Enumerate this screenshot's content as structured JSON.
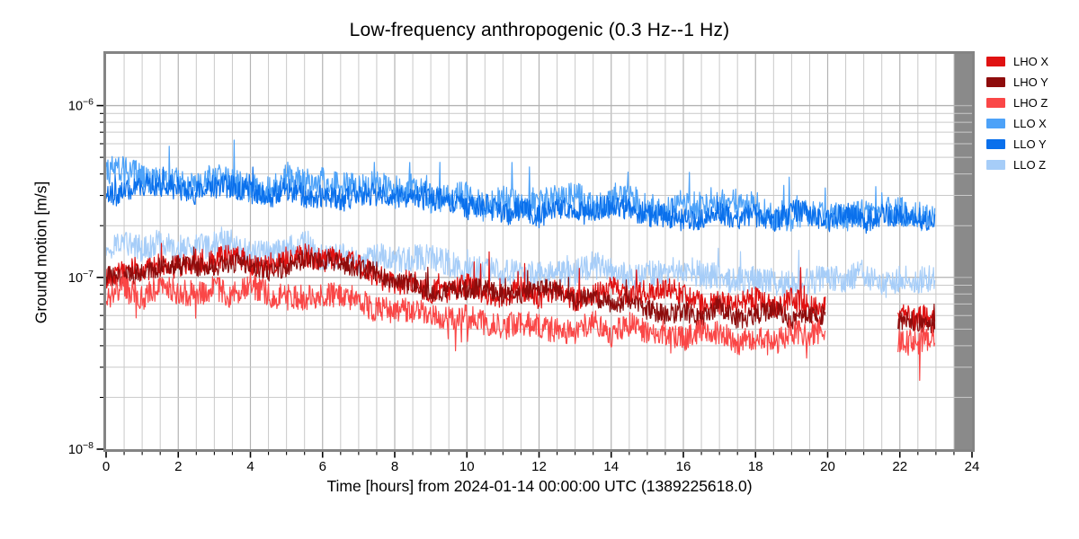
{
  "figure": {
    "bg": "#ffffff",
    "spine_color": "#848484",
    "grid_major_color": "#b3b3b3",
    "grid_minor_color": "#c9c9c9",
    "tick_color": "#000000",
    "future_shade_color": "#8a8a8a",
    "text_color": "#000000"
  },
  "chart_data": {
    "type": "line",
    "title": "Low-frequency anthropogenic (0.3 Hz--1 Hz)",
    "xlabel": "Time [hours] from 2024-01-14 00:00:00 UTC (1389225618.0)",
    "ylabel": "Ground motion [m/s]",
    "yscale": "log",
    "xlim": [
      0,
      24
    ],
    "ylim": [
      1e-08,
      2e-06
    ],
    "x_ticks": [
      0,
      2,
      4,
      6,
      8,
      10,
      12,
      14,
      16,
      18,
      20,
      22,
      24
    ],
    "x_minor_step": 0.5,
    "y_ticks_exp": [
      -6,
      -7,
      -8
    ],
    "grid": true,
    "legend_position": "outside-top-right",
    "future_shade_start_hours": 23.5,
    "units_scale": 1e-07,
    "sample_step_hours": 0.016667,
    "series": [
      {
        "name": "LHO X",
        "color": "#e01212",
        "z": 4,
        "seed": 101,
        "segments": [
          [
            0,
            19.95
          ],
          [
            21.95,
            22.97
          ]
        ],
        "noise_dex": 0.07,
        "slow_dex": 0.05,
        "spike_prob": 0.014,
        "spike_dex": 0.2,
        "spike_sign": 1,
        "center_1e7": [
          1.05,
          1.1,
          1.18,
          1.22,
          1.28,
          1.25,
          1.28,
          1.18,
          1.02,
          0.92,
          0.86,
          0.84,
          0.84,
          0.82,
          0.8,
          0.79,
          0.78,
          0.77,
          0.75,
          0.73,
          0.72,
          0.68,
          0.64,
          0.63
        ]
      },
      {
        "name": "LHO Y",
        "color": "#8e0c0c",
        "z": 5,
        "seed": 102,
        "segments": [
          [
            0,
            19.95
          ],
          [
            21.95,
            22.97
          ]
        ],
        "noise_dex": 0.06,
        "slow_dex": 0.045,
        "spike_prob": 0.008,
        "spike_dex": 0.12,
        "spike_sign": 1,
        "center_1e7": [
          0.98,
          1.02,
          1.08,
          1.12,
          1.18,
          1.15,
          1.18,
          1.08,
          0.95,
          0.86,
          0.82,
          0.8,
          0.8,
          0.76,
          0.72,
          0.68,
          0.64,
          0.62,
          0.61,
          0.6,
          0.6,
          0.6,
          0.6,
          0.58
        ]
      },
      {
        "name": "LHO Z",
        "color": "#fa4747",
        "z": 6,
        "seed": 103,
        "segments": [
          [
            0,
            19.95
          ],
          [
            21.95,
            22.97
          ]
        ],
        "noise_dex": 0.075,
        "slow_dex": 0.05,
        "spike_prob": 0.014,
        "spike_dex": 0.16,
        "spike_sign": -1,
        "center_1e7": [
          0.8,
          0.82,
          0.85,
          0.87,
          0.87,
          0.85,
          0.82,
          0.76,
          0.66,
          0.58,
          0.54,
          0.52,
          0.53,
          0.52,
          0.51,
          0.49,
          0.47,
          0.46,
          0.46,
          0.45,
          0.45,
          0.44,
          0.43,
          0.42
        ]
      },
      {
        "name": "LLO X",
        "color": "#4da2f8",
        "z": 1,
        "seed": 104,
        "segments": [
          [
            0,
            22.97
          ]
        ],
        "noise_dex": 0.085,
        "slow_dex": 0.05,
        "spike_prob": 0.02,
        "spike_dex": 0.22,
        "spike_sign": 1,
        "center_1e7": [
          3.8,
          3.7,
          3.75,
          3.6,
          3.55,
          3.5,
          3.4,
          3.28,
          3.1,
          2.95,
          2.85,
          2.8,
          2.75,
          2.7,
          2.65,
          2.6,
          2.55,
          2.5,
          2.47,
          2.45,
          2.42,
          2.4,
          2.4,
          2.45
        ]
      },
      {
        "name": "LLO Y",
        "color": "#0a70ec",
        "z": 2,
        "seed": 105,
        "segments": [
          [
            0,
            22.97
          ]
        ],
        "noise_dex": 0.07,
        "slow_dex": 0.045,
        "spike_prob": 0.008,
        "spike_dex": 0.12,
        "spike_sign": 1,
        "center_1e7": [
          3.25,
          3.2,
          3.25,
          3.15,
          3.1,
          3.05,
          2.95,
          2.85,
          2.72,
          2.62,
          2.56,
          2.52,
          2.48,
          2.44,
          2.4,
          2.36,
          2.33,
          2.3,
          2.27,
          2.24,
          2.22,
          2.2,
          2.2,
          2.24
        ]
      },
      {
        "name": "LLO Z",
        "color": "#a6cdf8",
        "z": 3,
        "seed": 106,
        "segments": [
          [
            0,
            22.97
          ]
        ],
        "noise_dex": 0.08,
        "slow_dex": 0.045,
        "spike_prob": 0.012,
        "spike_dex": 0.15,
        "spike_sign": 1,
        "center_1e7": [
          1.5,
          1.55,
          1.5,
          1.46,
          1.5,
          1.45,
          1.4,
          1.34,
          1.27,
          1.21,
          1.16,
          1.12,
          1.12,
          1.1,
          1.08,
          1.07,
          1.05,
          1.02,
          1.0,
          1.0,
          0.98,
          0.96,
          0.95,
          0.97
        ]
      }
    ]
  }
}
